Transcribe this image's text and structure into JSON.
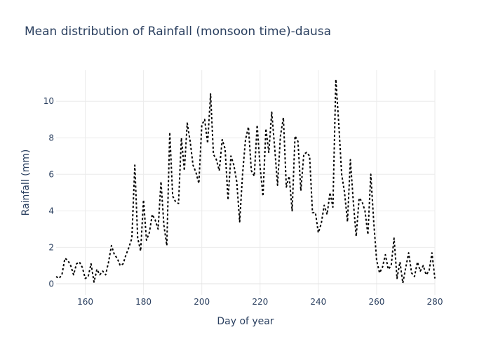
{
  "chart_data": {
    "type": "line",
    "title": "Mean distribution of Rainfall (monsoon time)-dausa",
    "xlabel": "Day of year",
    "ylabel": "Rainfall (mm)",
    "xlim": [
      150,
      280
    ],
    "ylim": [
      -0.6,
      11.7
    ],
    "xticks": [
      160,
      180,
      200,
      220,
      240,
      260,
      280
    ],
    "yticks": [
      0,
      2,
      4,
      6,
      8,
      10
    ],
    "grid": true,
    "line_style": "dotted",
    "line_color": "#000000",
    "series": [
      {
        "x": [
          150,
          151,
          152,
          153,
          154,
          155,
          156,
          157,
          158,
          159,
          160,
          161,
          162,
          163,
          164,
          165,
          166,
          167,
          168,
          169,
          170,
          171,
          172,
          173,
          174,
          175,
          176,
          177,
          178,
          179,
          180,
          181,
          182,
          183,
          184,
          185,
          186,
          187,
          188,
          189,
          190,
          191,
          192,
          193,
          194,
          195,
          196,
          197,
          198,
          199,
          200,
          201,
          202,
          203,
          204,
          205,
          206,
          207,
          208,
          209,
          210,
          211,
          212,
          213,
          214,
          215,
          216,
          217,
          218,
          219,
          220,
          221,
          222,
          223,
          224,
          225,
          226,
          227,
          228,
          229,
          230,
          231,
          232,
          233,
          234,
          235,
          236,
          237,
          238,
          239,
          240,
          241,
          242,
          243,
          244,
          245,
          246,
          247,
          248,
          249,
          250,
          251,
          252,
          253,
          254,
          255,
          256,
          257,
          258,
          259,
          260,
          261,
          262,
          263,
          264,
          265,
          266,
          267,
          268,
          269,
          270,
          271,
          272,
          273,
          274,
          275,
          276,
          277,
          278,
          279,
          280
        ],
        "y": [
          0.4,
          0.3,
          0.5,
          1.4,
          1.3,
          1.0,
          0.5,
          1.1,
          1.2,
          0.9,
          0.3,
          0.4,
          1.1,
          0.1,
          0.8,
          0.5,
          0.7,
          0.5,
          1.2,
          2.1,
          1.6,
          1.4,
          1.0,
          1.1,
          1.6,
          2.0,
          2.5,
          6.5,
          2.5,
          1.8,
          4.6,
          2.4,
          2.8,
          3.8,
          3.5,
          3.0,
          5.6,
          3.2,
          2.1,
          8.3,
          4.8,
          4.5,
          4.4,
          8.0,
          6.2,
          8.8,
          7.8,
          6.5,
          6.1,
          5.5,
          8.7,
          9.0,
          7.7,
          10.4,
          7.1,
          6.8,
          6.2,
          7.9,
          7.4,
          4.6,
          7.0,
          6.5,
          5.6,
          3.4,
          6.0,
          7.9,
          8.6,
          6.2,
          5.9,
          8.7,
          6.4,
          4.8,
          8.5,
          7.2,
          9.4,
          7.5,
          5.4,
          8.1,
          9.1,
          5.3,
          5.9,
          4.0,
          8.1,
          7.8,
          5.1,
          7.1,
          7.2,
          7.0,
          3.9,
          3.9,
          2.8,
          3.3,
          4.3,
          3.8,
          5.0,
          4.2,
          11.2,
          8.8,
          6.0,
          5.0,
          3.4,
          6.8,
          4.5,
          2.6,
          4.7,
          4.5,
          4.0,
          2.7,
          6.0,
          3.4,
          1.3,
          0.6,
          0.9,
          1.6,
          0.8,
          1.0,
          2.5,
          0.3,
          1.2,
          0.05,
          0.9,
          1.7,
          0.6,
          0.4,
          1.2,
          0.7,
          1.0,
          0.5,
          0.7,
          1.7,
          0.3
        ]
      }
    ]
  }
}
